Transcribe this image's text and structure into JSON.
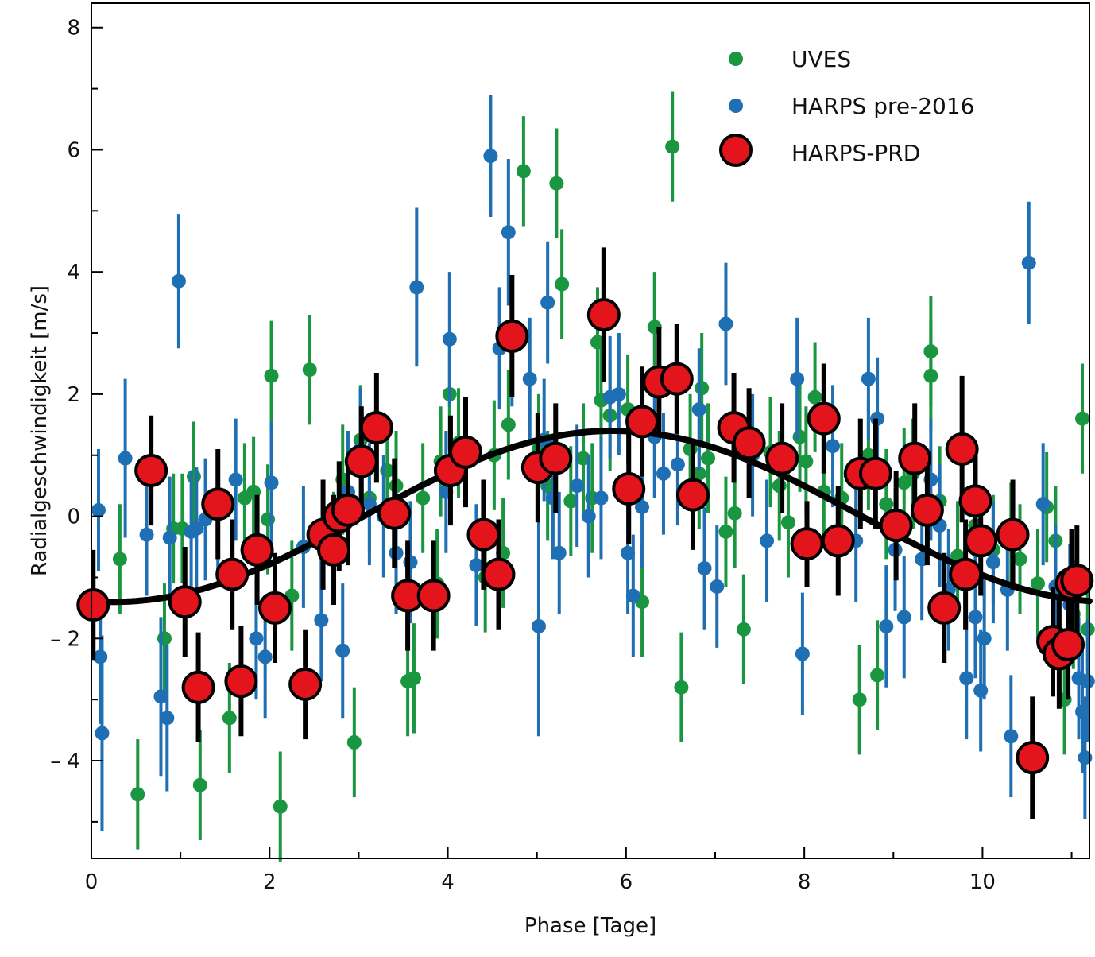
{
  "chart_data": {
    "type": "scatter",
    "xlabel": "Phase [Tage]",
    "ylabel": "Radialgeschwindigkeit [m/s]",
    "xlim": [
      0,
      11.2
    ],
    "ylim": [
      -5.6,
      8.4
    ],
    "x_ticks": [
      0,
      2,
      4,
      6,
      8,
      10
    ],
    "y_ticks": [
      -4,
      -2,
      0,
      2,
      4,
      6,
      8
    ],
    "x_tick_labels": [
      "0",
      "2",
      "4",
      "6",
      "8",
      "10"
    ],
    "y_tick_labels": [
      "– 4",
      "– 2",
      "0",
      "2",
      "4",
      "6",
      "8"
    ],
    "legend_position": "top-right",
    "grid": false,
    "colors": {
      "uves": "#1a9640",
      "harps_pre": "#1f6fb5",
      "harps_prd_fill": "#e3141c",
      "edge": "#000000",
      "fit": "#000000"
    },
    "fit_curve": {
      "type": "sinusoid",
      "offset": 0.0,
      "amplitude": 1.4,
      "period": 11.186,
      "phase_of_max": 5.85
    },
    "series": [
      {
        "name": "UVES",
        "x": [
          0.32,
          0.52,
          1.02,
          1.22,
          0.82,
          1.15,
          1.55,
          1.72,
          1.98,
          2.02,
          2.12,
          2.25,
          2.45,
          2.72,
          2.95,
          3.02,
          3.32,
          3.42,
          3.55,
          3.62,
          3.72,
          3.88,
          4.02,
          4.52,
          4.68,
          4.85,
          5.02,
          5.22,
          5.28,
          5.38,
          5.52,
          5.68,
          5.72,
          5.82,
          6.02,
          6.18,
          6.32,
          6.52,
          6.62,
          6.72,
          6.85,
          6.92,
          7.12,
          7.22,
          7.32,
          7.62,
          7.72,
          7.82,
          7.95,
          8.02,
          8.12,
          8.22,
          8.42,
          8.62,
          8.82,
          8.92,
          9.12,
          9.22,
          9.42,
          9.52,
          9.72,
          9.92,
          10.12,
          10.32,
          10.42,
          10.62,
          10.72,
          10.92,
          11.02,
          11.12,
          0.92,
          1.82,
          2.82,
          3.12,
          3.92,
          4.12,
          4.42,
          4.62,
          5.12,
          5.62,
          6.82,
          8.72,
          9.42,
          10.82,
          11.18
        ],
        "y": [
          -0.7,
          -4.55,
          -0.2,
          -4.4,
          -2.0,
          0.65,
          -3.3,
          0.3,
          -0.05,
          2.3,
          -4.75,
          -1.3,
          2.4,
          -0.5,
          -3.7,
          1.25,
          0.75,
          0.5,
          -2.7,
          -2.65,
          0.3,
          -1.1,
          2.0,
          1.0,
          1.5,
          5.65,
          1.1,
          5.45,
          3.8,
          0.25,
          0.95,
          2.85,
          1.9,
          1.65,
          1.75,
          -1.4,
          3.1,
          6.05,
          -2.8,
          1.1,
          2.1,
          0.95,
          -0.25,
          0.05,
          -1.85,
          1.05,
          0.5,
          -0.1,
          1.3,
          0.9,
          1.95,
          0.4,
          0.3,
          -3.0,
          -2.6,
          0.2,
          0.55,
          0.7,
          2.7,
          0.25,
          -0.65,
          -0.15,
          -0.55,
          -0.35,
          -0.7,
          -1.1,
          0.15,
          -3.0,
          -1.6,
          1.6,
          -0.2,
          0.4,
          0.6,
          0.3,
          0.9,
          1.2,
          -1.0,
          -0.6,
          0.5,
          0.3,
          0.7,
          1.0,
          2.3,
          -0.4,
          -1.85
        ],
        "err": [
          0.9,
          0.9,
          0.9,
          0.9,
          0.9,
          0.9,
          0.9,
          0.9,
          0.9,
          0.9,
          0.9,
          0.9,
          0.9,
          0.9,
          0.9,
          0.9,
          0.9,
          0.9,
          0.9,
          0.9,
          0.9,
          0.9,
          0.9,
          0.9,
          0.9,
          0.9,
          0.9,
          0.9,
          0.9,
          0.9,
          0.9,
          0.9,
          0.9,
          0.9,
          0.9,
          0.9,
          0.9,
          0.9,
          0.9,
          0.9,
          0.9,
          0.9,
          0.9,
          0.9,
          0.9,
          0.9,
          0.9,
          0.9,
          0.9,
          0.9,
          0.9,
          0.9,
          0.9,
          0.9,
          0.9,
          0.9,
          0.9,
          0.9,
          0.9,
          0.9,
          0.9,
          0.9,
          0.9,
          0.9,
          0.9,
          0.9,
          0.9,
          0.9,
          0.9,
          0.9,
          0.9,
          0.9,
          0.9,
          0.9,
          0.9,
          0.9,
          0.9,
          0.9,
          0.9,
          0.9,
          0.9,
          0.9,
          0.9,
          0.9,
          0.9
        ]
      },
      {
        "name": "HARPS pre-2016",
        "x": [
          0.08,
          0.1,
          0.12,
          0.38,
          0.62,
          0.78,
          0.85,
          0.88,
          0.98,
          1.12,
          1.18,
          1.28,
          1.42,
          1.62,
          1.85,
          1.95,
          2.02,
          2.38,
          2.58,
          2.82,
          2.88,
          3.12,
          3.28,
          3.42,
          3.58,
          3.65,
          3.98,
          4.02,
          4.32,
          4.48,
          4.58,
          4.68,
          4.72,
          4.92,
          5.02,
          5.08,
          5.12,
          5.18,
          5.25,
          5.45,
          5.58,
          5.82,
          5.92,
          6.02,
          6.08,
          6.18,
          6.32,
          6.58,
          6.82,
          6.88,
          7.02,
          7.12,
          7.58,
          7.92,
          7.98,
          8.32,
          8.58,
          8.72,
          8.82,
          8.92,
          9.02,
          9.12,
          9.32,
          9.42,
          9.52,
          9.62,
          9.82,
          9.92,
          9.98,
          10.02,
          10.12,
          10.28,
          10.32,
          10.52,
          10.68,
          10.82,
          10.98,
          11.08,
          11.12,
          11.15,
          11.18,
          6.42,
          7.42,
          3.02,
          5.72
        ],
        "y": [
          0.1,
          -2.3,
          -3.55,
          0.95,
          -0.3,
          -2.95,
          -3.3,
          -0.35,
          3.85,
          -0.25,
          -0.2,
          -0.05,
          0.1,
          0.6,
          -2.0,
          -2.3,
          0.55,
          -0.5,
          -1.7,
          -2.2,
          0.4,
          0.2,
          0.0,
          -0.6,
          -0.75,
          3.75,
          0.4,
          2.9,
          -0.8,
          5.9,
          2.75,
          4.65,
          2.8,
          2.25,
          -1.8,
          1.25,
          3.5,
          0.3,
          -0.6,
          0.5,
          0.0,
          1.95,
          2.0,
          -0.6,
          -1.3,
          0.15,
          1.3,
          0.85,
          1.75,
          -0.85,
          -1.15,
          3.15,
          -0.4,
          2.25,
          -2.25,
          1.15,
          -0.4,
          2.25,
          1.6,
          -1.8,
          -0.55,
          -1.65,
          -0.7,
          0.6,
          -0.15,
          -1.2,
          -2.65,
          -1.65,
          -2.85,
          -2.0,
          -0.75,
          -1.2,
          -3.6,
          4.15,
          0.2,
          -1.15,
          -1.45,
          -2.65,
          -3.2,
          -3.95,
          -2.7,
          0.7,
          1.0,
          1.1,
          0.3
        ],
        "err": [
          1.0,
          1.1,
          1.6,
          1.3,
          1.0,
          1.3,
          1.2,
          1.0,
          1.1,
          1.0,
          1.0,
          1.0,
          1.0,
          1.0,
          1.0,
          1.0,
          1.0,
          1.0,
          1.0,
          1.1,
          1.0,
          1.0,
          1.0,
          1.0,
          1.0,
          1.3,
          1.0,
          1.1,
          1.0,
          1.0,
          1.0,
          1.2,
          1.0,
          1.0,
          1.8,
          1.0,
          1.0,
          1.0,
          1.0,
          1.0,
          1.0,
          1.0,
          1.0,
          1.0,
          1.0,
          1.0,
          1.0,
          1.0,
          1.0,
          1.0,
          1.0,
          1.0,
          1.0,
          1.0,
          1.0,
          1.0,
          1.0,
          1.0,
          1.0,
          1.0,
          1.0,
          1.0,
          1.0,
          1.0,
          1.0,
          1.0,
          1.0,
          1.0,
          1.0,
          1.0,
          1.0,
          1.0,
          1.0,
          1.0,
          1.0,
          1.0,
          1.0,
          1.0,
          1.0,
          1.0,
          1.0,
          1.0,
          1.0,
          1.0,
          1.0
        ]
      },
      {
        "name": "HARPS-PRD",
        "x": [
          0.02,
          0.67,
          1.05,
          1.2,
          1.42,
          1.58,
          1.68,
          1.86,
          2.06,
          2.4,
          2.6,
          2.72,
          2.78,
          2.88,
          3.03,
          3.2,
          3.4,
          3.55,
          3.84,
          4.03,
          4.2,
          4.4,
          4.57,
          4.72,
          5.01,
          5.21,
          5.75,
          6.03,
          6.18,
          6.37,
          6.57,
          6.75,
          7.21,
          7.38,
          7.75,
          8.03,
          8.22,
          8.38,
          8.63,
          8.8,
          9.03,
          9.24,
          9.38,
          9.57,
          9.77,
          9.81,
          9.92,
          9.98,
          10.34,
          10.56,
          10.79,
          10.86,
          10.96,
          11.0,
          11.06
        ],
        "y": [
          -1.45,
          0.75,
          -1.4,
          -2.8,
          0.2,
          -0.95,
          -2.7,
          -0.55,
          -1.5,
          -2.75,
          -0.3,
          -0.55,
          0.0,
          0.1,
          0.9,
          1.45,
          0.05,
          -1.3,
          -1.3,
          0.75,
          1.05,
          -0.3,
          -0.95,
          2.95,
          0.8,
          0.95,
          3.3,
          0.45,
          1.55,
          2.2,
          2.25,
          0.35,
          1.45,
          1.2,
          0.95,
          -0.45,
          1.6,
          -0.4,
          0.7,
          0.7,
          -0.15,
          0.95,
          0.1,
          -1.5,
          1.1,
          -0.95,
          0.25,
          -0.4,
          -0.3,
          -3.95,
          -2.05,
          -2.25,
          -2.1,
          -1.1,
          -1.05
        ],
        "err": [
          0.9,
          0.9,
          0.9,
          0.9,
          0.9,
          0.9,
          0.9,
          0.9,
          0.9,
          0.9,
          0.9,
          0.9,
          0.9,
          0.9,
          0.9,
          0.9,
          0.9,
          0.9,
          0.9,
          0.9,
          0.9,
          0.9,
          0.9,
          1.0,
          0.9,
          0.9,
          1.1,
          0.9,
          0.9,
          0.9,
          0.9,
          0.9,
          0.9,
          0.9,
          0.9,
          0.7,
          0.9,
          0.9,
          0.9,
          0.9,
          0.9,
          0.9,
          0.9,
          0.9,
          1.2,
          0.9,
          0.9,
          0.9,
          0.9,
          1.0,
          0.9,
          0.9,
          0.9,
          0.9,
          0.9
        ]
      }
    ]
  },
  "legend": {
    "uves_label": "UVES",
    "harps_pre_label": "HARPS pre-2016",
    "harps_prd_label": "HARPS-PRD"
  }
}
